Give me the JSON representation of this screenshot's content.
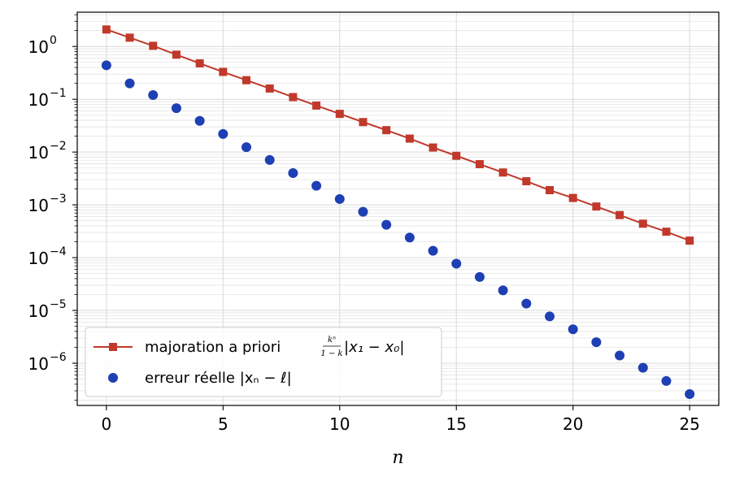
{
  "chart_data": {
    "type": "line",
    "title": "",
    "xlabel": "n",
    "ylabel": "",
    "xlim": [
      -1.25,
      26.25
    ],
    "ylim_log10": [
      -6.8,
      0.65
    ],
    "yscale": "log",
    "grid": true,
    "legend_position": "lower-left",
    "x_ticks": [
      0,
      5,
      10,
      15,
      20,
      25
    ],
    "y_ticks": [
      {
        "base": "10",
        "exp": "0",
        "value": 1
      },
      {
        "base": "10",
        "exp": "−1",
        "value": 0.1
      },
      {
        "base": "10",
        "exp": "−2",
        "value": 0.01
      },
      {
        "base": "10",
        "exp": "−3",
        "value": 0.001
      },
      {
        "base": "10",
        "exp": "−4",
        "value": 0.0001
      },
      {
        "base": "10",
        "exp": "−5",
        "value": 1e-05
      },
      {
        "base": "10",
        "exp": "−6",
        "value": 1e-06
      }
    ],
    "series": [
      {
        "name": "majoration a priori",
        "name_fraction_num": "kⁿ",
        "name_fraction_den": "1 − k",
        "name_suffix": "|x₁ − x₀|",
        "style": "line-square",
        "color": "#c0392b",
        "x": [
          0,
          1,
          2,
          3,
          4,
          5,
          6,
          7,
          8,
          9,
          10,
          11,
          12,
          13,
          14,
          15,
          16,
          17,
          18,
          19,
          20,
          21,
          22,
          23,
          24,
          25
        ],
        "values": [
          2.1,
          1.47,
          1.03,
          0.7,
          0.48,
          0.33,
          0.23,
          0.16,
          0.11,
          0.076,
          0.053,
          0.037,
          0.026,
          0.018,
          0.0122,
          0.0085,
          0.0059,
          0.0041,
          0.0028,
          0.0019,
          0.00135,
          0.00093,
          0.00064,
          0.00044,
          0.00031,
          0.00021
        ]
      },
      {
        "name": "erreur réelle |xₙ − ℓ|",
        "style": "markers",
        "color": "#1f3fb4",
        "x": [
          0,
          1,
          2,
          3,
          4,
          5,
          6,
          7,
          8,
          9,
          10,
          11,
          12,
          13,
          14,
          15,
          16,
          17,
          18,
          19,
          20,
          21,
          22,
          23,
          24,
          25
        ],
        "values": [
          0.44,
          0.2,
          0.12,
          0.068,
          0.039,
          0.022,
          0.0124,
          0.0071,
          0.004,
          0.0023,
          0.00129,
          0.00074,
          0.00042,
          0.00024,
          0.000135,
          7.7e-05,
          4.3e-05,
          2.4e-05,
          1.35e-05,
          7.7e-06,
          4.4e-06,
          2.5e-06,
          1.4e-06,
          8.2e-07,
          4.6e-07,
          2.6e-07
        ]
      }
    ]
  }
}
